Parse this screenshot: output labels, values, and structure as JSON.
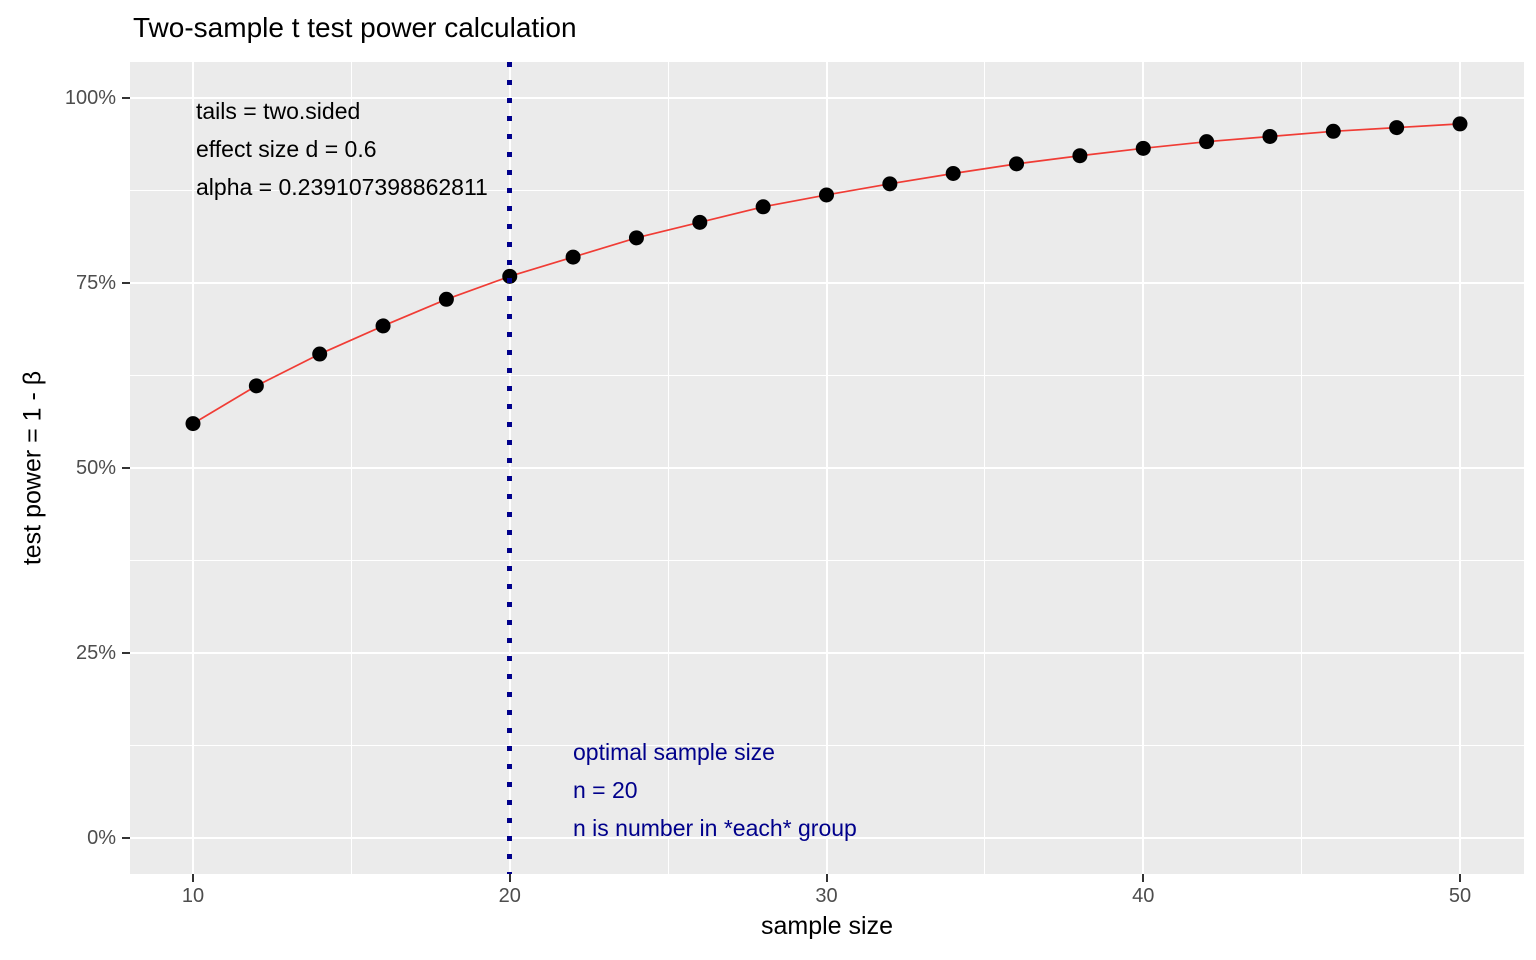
{
  "title": "Two-sample t test power calculation",
  "chart_data": {
    "type": "line",
    "title": "Two-sample t test power calculation",
    "xlabel": "sample size",
    "ylabel": "test power = 1 - β",
    "x": [
      10,
      12,
      14,
      16,
      18,
      20,
      22,
      24,
      26,
      28,
      30,
      32,
      34,
      36,
      38,
      40,
      42,
      44,
      46,
      48,
      50
    ],
    "series": [
      {
        "name": "power_percent",
        "values": [
          56.0,
          61.1,
          65.4,
          69.2,
          72.8,
          75.9,
          78.5,
          81.1,
          83.2,
          85.3,
          86.9,
          88.4,
          89.8,
          91.1,
          92.2,
          93.2,
          94.1,
          94.8,
          95.5,
          96.0,
          96.5
        ]
      }
    ],
    "x_ticks": [
      10,
      20,
      30,
      40,
      50
    ],
    "x_tick_labels": [
      "10",
      "20",
      "30",
      "40",
      "50"
    ],
    "x_minor_ticks": [
      15,
      25,
      35,
      45
    ],
    "y_ticks": [
      0,
      25,
      50,
      75,
      100
    ],
    "y_tick_labels": [
      "0%",
      "25%",
      "50%",
      "75%",
      "100%"
    ],
    "y_minor_ticks": [
      12.5,
      37.5,
      62.5,
      87.5
    ],
    "xlim": [
      10,
      50
    ],
    "ylim_percent": [
      0,
      100
    ],
    "grid": "major-minor-white-on-grey",
    "legend_position": "none",
    "vline": {
      "x": 20,
      "style": "dotted",
      "color": "#00008B"
    },
    "annotations": [
      {
        "id": "params",
        "color": "#000000",
        "lines": [
          "tails = two.sided",
          "effect size d = 0.6",
          "alpha = 0.239107398862811"
        ]
      },
      {
        "id": "optimal",
        "color": "#00008B",
        "lines": [
          "optimal sample size",
          "n = 20",
          "n is number in *each* group"
        ]
      }
    ],
    "colors": {
      "panel_background": "#EBEBEB",
      "gridline": "#FFFFFF",
      "tick_label": "#4D4D4D",
      "tick_mark": "#333333",
      "line": "#F03C35",
      "point": "#000000",
      "vline": "#00008B",
      "annotation_dark": "#000000",
      "annotation_navy": "#00008B"
    }
  }
}
